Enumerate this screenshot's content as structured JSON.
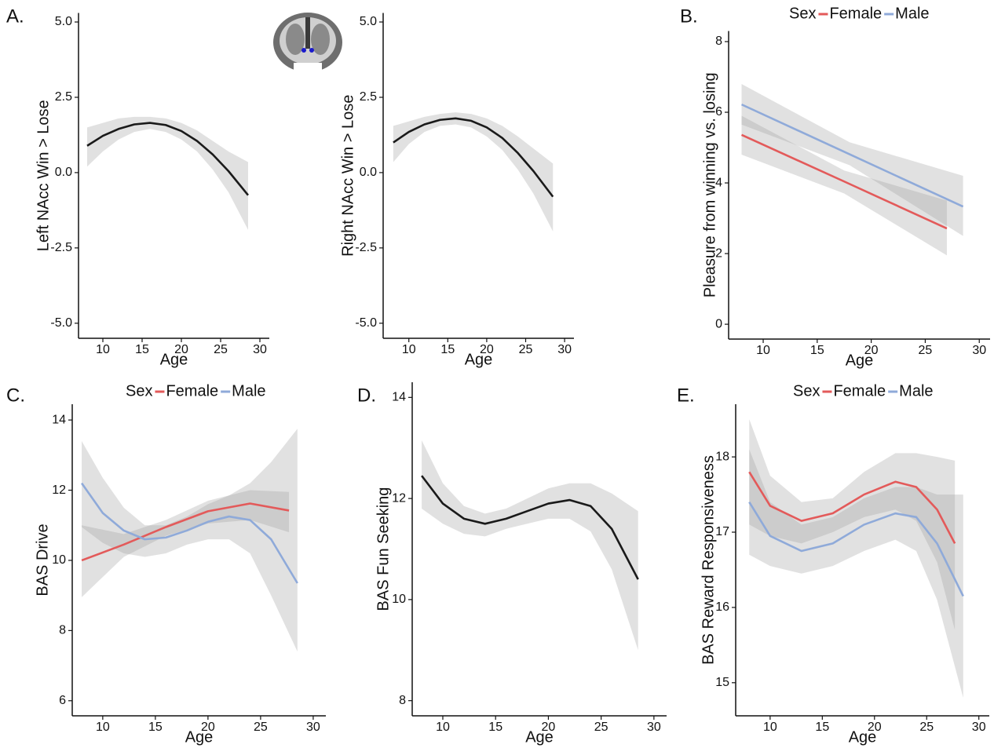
{
  "chart_data": [
    {
      "type": "line",
      "panel_label": "A.",
      "xlabel": "Age",
      "ylabel": "Left NAcc Win > Lose",
      "color": "#1a1a1a",
      "x": [
        8,
        10,
        12,
        14,
        16,
        18,
        20,
        22,
        24,
        26,
        28.5
      ],
      "values": [
        0.89,
        1.22,
        1.45,
        1.6,
        1.65,
        1.58,
        1.38,
        1.05,
        0.6,
        0.05,
        -0.75
      ],
      "upper": [
        1.5,
        1.65,
        1.8,
        1.85,
        1.85,
        1.8,
        1.65,
        1.4,
        1.05,
        0.7,
        0.35
      ],
      "lower": [
        0.2,
        0.7,
        1.1,
        1.35,
        1.45,
        1.35,
        1.1,
        0.7,
        0.1,
        -0.65,
        -1.9
      ],
      "xlim": [
        6.9,
        31.2
      ],
      "ylim": [
        -5.5,
        5.3
      ],
      "xticks": [
        10,
        15,
        20,
        25,
        30
      ],
      "yticks": [
        {
          "value": -5,
          "label": "-5.0"
        },
        -2.5,
        {
          "value": 0,
          "label": "0.0"
        },
        2.5,
        {
          "value": 5,
          "label": "5.0"
        }
      ]
    },
    {
      "type": "line",
      "xlabel": "Age",
      "ylabel": "Right NAcc Win > Lose",
      "color": "#1a1a1a",
      "x": [
        8,
        10,
        12,
        14,
        16,
        18,
        20,
        22,
        24,
        26,
        28.5
      ],
      "values": [
        1.0,
        1.35,
        1.6,
        1.75,
        1.8,
        1.72,
        1.5,
        1.15,
        0.65,
        0.05,
        -0.8
      ],
      "upper": [
        1.55,
        1.7,
        1.85,
        1.95,
        2.0,
        1.95,
        1.8,
        1.55,
        1.2,
        0.8,
        0.3
      ],
      "lower": [
        0.35,
        0.95,
        1.35,
        1.55,
        1.6,
        1.5,
        1.2,
        0.75,
        0.1,
        -0.7,
        -1.95
      ],
      "xlim": [
        6.7,
        31.2
      ],
      "ylim": [
        -5.5,
        5.3
      ],
      "xticks": [
        10,
        15,
        20,
        25,
        30
      ],
      "yticks": [
        {
          "value": -5,
          "label": "-5.0"
        },
        -2.5,
        {
          "value": 0,
          "label": "0.0"
        },
        2.5,
        {
          "value": 5,
          "label": "5.0"
        }
      ]
    },
    {
      "type": "line",
      "panel_label": "B.",
      "xlabel": "Age",
      "ylabel": "Pleasure from winning vs. losing",
      "legend_title": "Sex",
      "legend": "top",
      "series": [
        {
          "name": "Female",
          "color": "#e35a5a",
          "x": [
            8,
            17.5,
            27
          ],
          "values": [
            5.36,
            4.04,
            2.71
          ],
          "upper": [
            5.9,
            4.35,
            3.5
          ],
          "lower": [
            4.8,
            3.7,
            1.95
          ]
        },
        {
          "name": "Male",
          "color": "#8faad9",
          "x": [
            8,
            18,
            28.5
          ],
          "values": [
            6.22,
            4.81,
            3.33
          ],
          "upper": [
            6.8,
            5.15,
            4.2
          ],
          "lower": [
            5.65,
            4.5,
            2.5
          ]
        }
      ],
      "xlim": [
        6.8,
        31.0
      ],
      "ylim": [
        -0.42,
        8.3
      ],
      "xticks": [
        10,
        15,
        20,
        25,
        30
      ],
      "yticks": [
        0,
        2,
        4,
        6,
        8
      ]
    },
    {
      "type": "line",
      "panel_label": "C.",
      "xlabel": "Age",
      "ylabel": "BAS Drive",
      "legend_title": "Sex",
      "legend": "top",
      "series": [
        {
          "name": "Female",
          "color": "#e35a5a",
          "x": [
            8,
            12,
            16,
            20,
            24,
            27.7
          ],
          "values": [
            10.0,
            10.45,
            10.95,
            11.4,
            11.62,
            11.42
          ],
          "upper": [
            11.0,
            10.75,
            11.15,
            11.7,
            12.0,
            11.95
          ],
          "lower": [
            8.95,
            10.1,
            10.7,
            11.05,
            11.15,
            10.8
          ]
        },
        {
          "name": "Male",
          "color": "#8faad9",
          "x": [
            8,
            10,
            12,
            14,
            16,
            18,
            20,
            22,
            24,
            26,
            28.5
          ],
          "values": [
            12.2,
            11.35,
            10.85,
            10.6,
            10.65,
            10.85,
            11.1,
            11.25,
            11.15,
            10.6,
            9.35
          ],
          "upper": [
            13.4,
            12.35,
            11.5,
            11.0,
            11.0,
            11.25,
            11.6,
            11.85,
            12.2,
            12.8,
            13.75
          ],
          "lower": [
            10.95,
            10.5,
            10.2,
            10.1,
            10.2,
            10.45,
            10.6,
            10.6,
            10.2,
            9.0,
            7.4
          ]
        }
      ],
      "xlim": [
        7.1,
        31.2
      ],
      "ylim": [
        5.57,
        14.45
      ],
      "xticks": [
        10,
        15,
        20,
        25,
        30
      ],
      "yticks": [
        6,
        8,
        10,
        12,
        14
      ]
    },
    {
      "type": "line",
      "panel_label": "D.",
      "xlabel": "Age",
      "ylabel": "BAS Fun Seeking",
      "color": "#1a1a1a",
      "x": [
        8,
        10,
        12,
        14,
        16,
        18,
        20,
        22,
        24,
        26,
        28.5
      ],
      "values": [
        12.45,
        11.9,
        11.6,
        11.5,
        11.6,
        11.75,
        11.9,
        11.97,
        11.85,
        11.4,
        10.4
      ],
      "upper": [
        13.15,
        12.3,
        11.85,
        11.7,
        11.8,
        12.0,
        12.2,
        12.3,
        12.3,
        12.1,
        11.75
      ],
      "lower": [
        11.8,
        11.5,
        11.3,
        11.25,
        11.4,
        11.5,
        11.6,
        11.6,
        11.35,
        10.6,
        9.0
      ],
      "xlim": [
        7.1,
        31.2
      ],
      "ylim": [
        7.7,
        14.3
      ],
      "xticks": [
        10,
        15,
        20,
        25,
        30
      ],
      "yticks": [
        8,
        10,
        12,
        14
      ]
    },
    {
      "type": "line",
      "panel_label": "E.",
      "xlabel": "Age",
      "ylabel": "BAS Reward Responsiveness",
      "legend_title": "Sex",
      "legend": "top",
      "series": [
        {
          "name": "Female",
          "color": "#e35a5a",
          "x": [
            8,
            10,
            13,
            16,
            19,
            22,
            24,
            26,
            27.7
          ],
          "values": [
            17.8,
            17.35,
            17.15,
            17.25,
            17.5,
            17.67,
            17.6,
            17.3,
            16.85
          ],
          "upper": [
            18.5,
            17.75,
            17.4,
            17.45,
            17.8,
            18.05,
            18.05,
            18.0,
            17.95
          ],
          "lower": [
            17.1,
            16.95,
            16.85,
            17.0,
            17.2,
            17.3,
            17.15,
            16.6,
            15.7
          ]
        },
        {
          "name": "Male",
          "color": "#8faad9",
          "x": [
            8,
            10,
            13,
            16,
            19,
            22,
            24,
            26,
            28.5
          ],
          "values": [
            17.4,
            16.95,
            16.75,
            16.85,
            17.1,
            17.25,
            17.2,
            16.85,
            16.15
          ],
          "upper": [
            18.1,
            17.4,
            17.1,
            17.2,
            17.45,
            17.6,
            17.6,
            17.5,
            17.5
          ],
          "lower": [
            16.7,
            16.55,
            16.45,
            16.55,
            16.75,
            16.9,
            16.75,
            16.1,
            14.8
          ]
        }
      ],
      "xlim": [
        6.7,
        31.0
      ],
      "ylim": [
        14.56,
        18.7
      ],
      "xticks": [
        10,
        15,
        20,
        25,
        30
      ],
      "yticks": [
        15,
        16,
        17,
        18
      ]
    }
  ]
}
